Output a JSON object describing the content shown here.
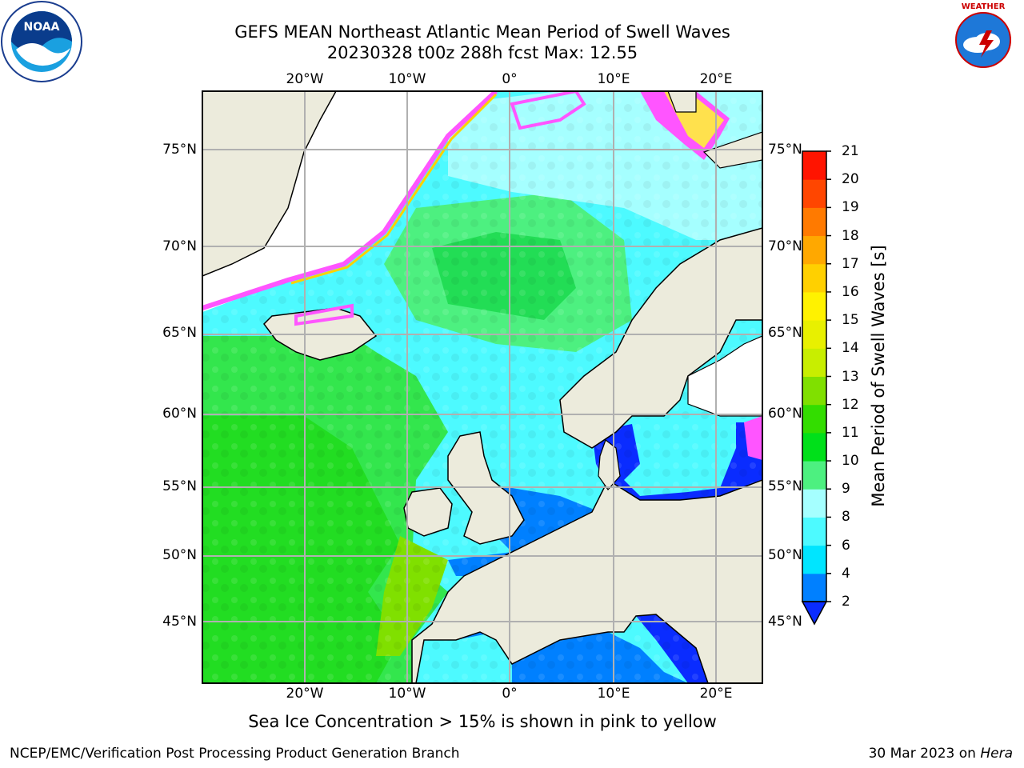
{
  "header": {
    "title_line1": "GEFS MEAN Northeast Atlantic Mean Period of Swell Waves",
    "title_line2": "20230328 t00z 288h fcst   Max: 12.55"
  },
  "logos": {
    "left": "NOAA",
    "left_ring_text": "NATIONAL OCEANIC AND ATMOSPHERIC ADMINISTRATION · U.S. DEPARTMENT OF COMMERCE",
    "right_ring_text": "NATIONAL WEATHER SERVICE"
  },
  "map": {
    "lon_ticks": [
      "20°W",
      "10°W",
      "0°",
      "10°E",
      "20°E"
    ],
    "lat_ticks": [
      "75°N",
      "70°N",
      "65°N",
      "60°N",
      "55°N",
      "50°N",
      "45°N"
    ],
    "lon_range": [
      -30,
      24
    ],
    "lat_range": [
      41,
      78
    ],
    "colors": {
      "land": "#ecebdc",
      "ice_white": "#ffffff",
      "grid": "#b0b0b0"
    }
  },
  "colorbar": {
    "label": "Mean Period of Swell Waves [s]",
    "ticks": [
      "2",
      "4",
      "6",
      "8",
      "9",
      "10",
      "11",
      "12",
      "13",
      "14",
      "15",
      "16",
      "17",
      "18",
      "19",
      "20",
      "21"
    ],
    "colors": [
      "#0a2cff",
      "#0080ff",
      "#00e5ff",
      "#4dfaff",
      "#a5ffff",
      "#4df080",
      "#00e01a",
      "#33dd00",
      "#80e000",
      "#c8ee00",
      "#e8f000",
      "#fff200",
      "#ffd000",
      "#ffa800",
      "#ff7a00",
      "#ff4600",
      "#ff1400"
    ]
  },
  "note": "Sea Ice Concentration > 15% is shown in pink to yellow",
  "footer": {
    "left": "NCEP/EMC/Verification Post Processing Product Generation Branch",
    "right_date": "30 Mar 2023 on",
    "right_host": "Hera"
  }
}
